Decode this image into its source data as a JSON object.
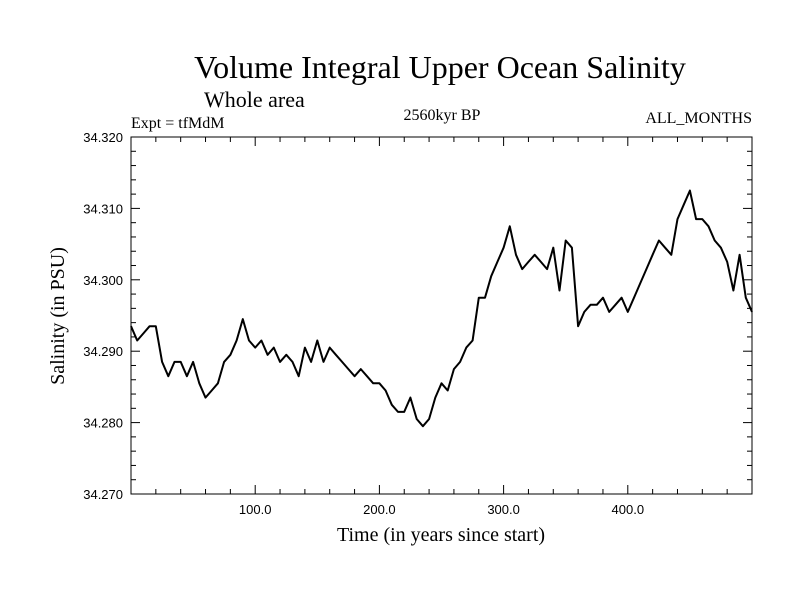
{
  "chart_data": {
    "type": "line",
    "title": "Volume Integral Upper Ocean Salinity",
    "subtitle": "Whole area",
    "experiment_label": "Expt = tfMdM",
    "period_label": "2560kyr BP",
    "months_label": "ALL_MONTHS",
    "xlabel": "Time (in years since start)",
    "ylabel": "Salinity (in PSU)",
    "xlim": [
      0,
      500
    ],
    "ylim": [
      34.27,
      34.32
    ],
    "x_ticks": [
      100,
      200,
      300,
      400
    ],
    "x_tick_labels": [
      "100.0",
      "200.0",
      "300.0",
      "400.0"
    ],
    "y_ticks": [
      34.27,
      34.28,
      34.29,
      34.3,
      34.31,
      34.32
    ],
    "y_tick_labels": [
      "34.270",
      "34.280",
      "34.290",
      "34.300",
      "34.310",
      "34.320"
    ],
    "line_color": "#000000",
    "series": [
      {
        "name": "salinity",
        "x": [
          0,
          5,
          10,
          15,
          20,
          25,
          30,
          35,
          40,
          45,
          50,
          55,
          60,
          65,
          70,
          75,
          80,
          85,
          90,
          95,
          100,
          105,
          110,
          115,
          120,
          125,
          130,
          135,
          140,
          145,
          150,
          155,
          160,
          165,
          170,
          175,
          180,
          185,
          190,
          195,
          200,
          205,
          210,
          215,
          220,
          225,
          230,
          235,
          240,
          245,
          250,
          255,
          260,
          265,
          270,
          275,
          280,
          285,
          290,
          295,
          300,
          305,
          310,
          315,
          320,
          325,
          330,
          335,
          340,
          345,
          350,
          355,
          360,
          365,
          370,
          375,
          380,
          385,
          390,
          395,
          400,
          405,
          410,
          415,
          420,
          425,
          430,
          435,
          440,
          445,
          450,
          455,
          460,
          465,
          470,
          475,
          480,
          485,
          490,
          495,
          500
        ],
        "values": [
          34.2935,
          34.2915,
          34.2925,
          34.2935,
          34.2935,
          34.2885,
          34.2865,
          34.2885,
          34.2885,
          34.2865,
          34.2885,
          34.2855,
          34.2835,
          34.2845,
          34.2855,
          34.2885,
          34.2895,
          34.2915,
          34.2945,
          34.2915,
          34.2905,
          34.2915,
          34.2895,
          34.2905,
          34.2885,
          34.2895,
          34.2885,
          34.2865,
          34.2905,
          34.2885,
          34.2915,
          34.2885,
          34.2905,
          34.2895,
          34.2885,
          34.2875,
          34.2865,
          34.2875,
          34.2865,
          34.2855,
          34.2855,
          34.2845,
          34.2825,
          34.2815,
          34.2815,
          34.2835,
          34.2805,
          34.2795,
          34.2805,
          34.2835,
          34.2855,
          34.2845,
          34.2875,
          34.2885,
          34.2905,
          34.2915,
          34.2975,
          34.2975,
          34.3005,
          34.3025,
          34.3045,
          34.3075,
          34.3035,
          34.3015,
          34.3025,
          34.3035,
          34.3025,
          34.3015,
          34.3045,
          34.2985,
          34.3055,
          34.3045,
          34.2935,
          34.2955,
          34.2965,
          34.2965,
          34.2975,
          34.2955,
          34.2965,
          34.2975,
          34.2955,
          34.2975,
          34.2995,
          34.3015,
          34.3035,
          34.3055,
          34.3045,
          34.3035,
          34.3085,
          34.3105,
          34.3125,
          34.3085,
          34.3085,
          34.3075,
          34.3055,
          34.3045,
          34.3025,
          34.2985,
          34.3035,
          34.2975,
          34.2955
        ]
      }
    ]
  }
}
